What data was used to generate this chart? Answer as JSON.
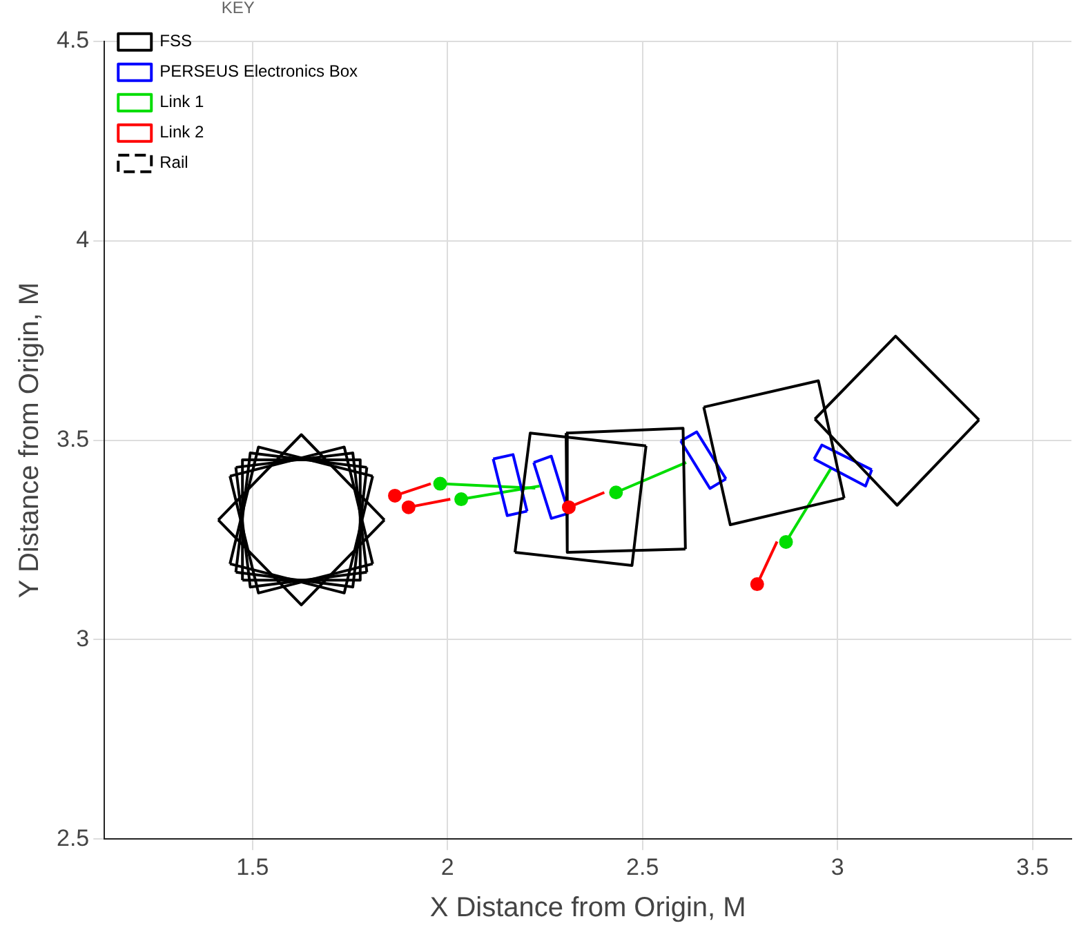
{
  "chart_data": {
    "type": "line",
    "xlabel": "X Distance from Origin, M",
    "ylabel": "Y Distance from Origin, M",
    "legend_title": "KEY",
    "legend": "top left",
    "grid": true,
    "marker": "none",
    "xlim": [
      1.12,
      3.6
    ],
    "xticks": [
      1.5,
      2,
      2.5,
      3,
      3.5
    ],
    "ylim": [
      2.5,
      4.5
    ],
    "yticks": [
      2.5,
      3,
      3.5,
      4,
      4.5
    ],
    "series": [
      {
        "name": "FSS",
        "color": "#000000",
        "x": [
          1.474,
          1.474,
          1.776,
          1.776
        ],
        "values": [
          3.149,
          3.451,
          3.451,
          3.149
        ]
      },
      {
        "color": "#000000",
        "x": [
          1.474,
          1.776
        ],
        "values": [
          3.149,
          3.149
        ]
      },
      {
        "color": "#000000",
        "x": [
          1.457,
          1.757,
          1.793
        ],
        "values": [
          3.432,
          3.468,
          3.169
        ]
      },
      {
        "color": "#000000",
        "x": [
          1.457,
          1.494,
          1.793
        ],
        "values": [
          3.432,
          3.132,
          3.169
        ]
      },
      {
        "color": "#000000",
        "x": [
          1.457,
          1.494,
          1.793
        ],
        "values": [
          3.169,
          3.468,
          3.432
        ]
      },
      {
        "color": "#000000",
        "x": [
          1.457,
          1.757,
          1.793
        ],
        "values": [
          3.169,
          3.132,
          3.432
        ]
      },
      {
        "color": "#000000",
        "x": [
          1.442,
          1.735,
          1.808
        ],
        "values": [
          3.41,
          3.483,
          3.19
        ]
      },
      {
        "color": "#000000",
        "x": [
          1.442,
          1.515,
          1.808
        ],
        "values": [
          3.41,
          3.117,
          3.19
        ]
      },
      {
        "color": "#000000",
        "x": [
          1.442,
          1.515,
          1.808
        ],
        "values": [
          3.19,
          3.483,
          3.41
        ]
      },
      {
        "color": "#000000",
        "x": [
          1.442,
          1.735,
          1.808
        ],
        "values": [
          3.19,
          3.117,
          3.41
        ]
      },
      {
        "color": "#000000",
        "x": [
          1.412,
          1.625,
          1.838
        ],
        "values": [
          3.3,
          3.514,
          3.3
        ]
      },
      {
        "color": "#000000",
        "x": [
          1.412,
          1.625,
          1.838
        ],
        "values": [
          3.3,
          3.087,
          3.3
        ]
      },
      {
        "color": "#000000",
        "x": [
          2.173,
          2.212,
          2.509
        ],
        "values": [
          3.219,
          3.518,
          3.486
        ]
      },
      {
        "color": "#000000",
        "x": [
          2.173,
          2.473,
          2.509
        ],
        "values": [
          3.219,
          3.186,
          3.486
        ]
      },
      {
        "color": "#000000",
        "x": [
          2.304,
          2.604,
          2.61
        ],
        "values": [
          3.518,
          3.53,
          3.227
        ]
      },
      {
        "color": "#000000",
        "x": [
          2.304,
          2.307,
          2.61
        ],
        "values": [
          3.518,
          3.219,
          3.227
        ]
      },
      {
        "color": "#000000",
        "x": [
          2.657,
          2.951,
          3.017
        ],
        "values": [
          3.583,
          3.649,
          3.355
        ]
      },
      {
        "color": "#000000",
        "x": [
          2.657,
          2.725,
          3.017
        ],
        "values": [
          3.583,
          3.288,
          3.355
        ]
      },
      {
        "color": "#000000",
        "x": [
          2.942,
          3.149,
          3.363
        ],
        "values": [
          3.553,
          3.761,
          3.551
        ]
      },
      {
        "color": "#000000",
        "x": [
          2.942,
          3.153,
          3.363
        ],
        "values": [
          3.553,
          3.337,
          3.551
        ]
      },
      {
        "name": "PERSEUS Electronics Box",
        "color": "#0000ff",
        "x": [
          2.117,
          2.168,
          2.204
        ],
        "values": [
          3.453,
          3.464,
          3.322
        ]
      },
      {
        "color": "#0000ff",
        "x": [
          2.117,
          2.153,
          2.204
        ],
        "values": [
          3.453,
          3.311,
          3.322
        ]
      },
      {
        "color": "#0000ff",
        "x": [
          2.221,
          2.266,
          2.311
        ],
        "values": [
          3.444,
          3.46,
          3.317
        ]
      },
      {
        "color": "#0000ff",
        "x": [
          2.221,
          2.266,
          2.311
        ],
        "values": [
          3.444,
          3.304,
          3.317
        ]
      },
      {
        "color": "#0000ff",
        "x": [
          2.598,
          2.639,
          2.714
        ],
        "values": [
          3.498,
          3.521,
          3.403
        ]
      },
      {
        "color": "#0000ff",
        "x": [
          2.598,
          2.673,
          2.714
        ],
        "values": [
          3.498,
          3.379,
          3.403
        ]
      },
      {
        "color": "#0000ff",
        "x": [
          2.94,
          2.96,
          3.088
        ],
        "values": [
          3.453,
          3.488,
          3.426
        ]
      },
      {
        "color": "#0000ff",
        "x": [
          2.94,
          3.072,
          3.088
        ],
        "values": [
          3.453,
          3.385,
          3.426
        ]
      },
      {
        "name": "Link 1",
        "color": "#00dd00",
        "x": [
          1.981,
          2.225
        ],
        "values": [
          3.391,
          3.38
        ]
      },
      {
        "color": "#00dd00",
        "x": [
          2.035,
          2.236
        ],
        "values": [
          3.352,
          3.385
        ]
      },
      {
        "color": "#00dd00",
        "x": [
          2.432,
          2.612
        ],
        "values": [
          3.369,
          3.444
        ]
      },
      {
        "color": "#00dd00",
        "x": [
          2.868,
          2.983
        ],
        "values": [
          3.245,
          3.429
        ]
      },
      {
        "name": "Link 2",
        "color": "#ff0000",
        "x": [
          1.865,
          1.957
        ],
        "values": [
          3.361,
          3.391
        ]
      },
      {
        "color": "#ff0000",
        "x": [
          1.9,
          2.007
        ],
        "values": [
          3.332,
          3.352
        ]
      },
      {
        "color": "#ff0000",
        "x": [
          2.311,
          2.402
        ],
        "values": [
          3.332,
          3.369
        ]
      },
      {
        "color": "#ff0000",
        "x": [
          2.794,
          2.845
        ],
        "values": [
          3.139,
          3.246
        ]
      },
      {
        "type": "scatter",
        "marker": "circle",
        "color": "#00dd00",
        "x": [
          1.981,
          2.035,
          2.432,
          2.868
        ],
        "values": [
          3.391,
          3.352,
          3.369,
          3.245
        ]
      },
      {
        "type": "scatter",
        "marker": "circle",
        "color": "#ff0000",
        "x": [
          1.865,
          1.9,
          2.311,
          2.794
        ],
        "values": [
          3.361,
          3.332,
          3.332,
          3.139
        ]
      },
      {
        "name": "Rail",
        "color": "#000000",
        "line_style": "dashed"
      }
    ]
  }
}
